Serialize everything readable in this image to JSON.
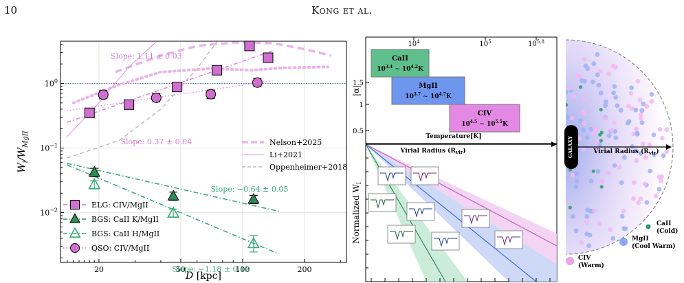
{
  "header": {
    "page_number": "10",
    "running_head": "Kong et al."
  },
  "chart_data": [
    {
      "type": "scatter",
      "xlabel": "D [kpc]",
      "ylabel": "W_i/W_MgII",
      "xscale": "log",
      "yscale": "log",
      "xlim": [
        13,
        320
      ],
      "ylim": [
        0.0017,
        4.5
      ],
      "xticks": [
        {
          "v": 20,
          "t": "20"
        },
        {
          "v": 50,
          "t": "50"
        },
        {
          "v": 100,
          "t": "100"
        },
        {
          "v": 200,
          "t": "200"
        }
      ],
      "yticks": [
        {
          "v": 0.01,
          "t": "10",
          "e": "−2"
        },
        {
          "v": 0.1,
          "t": "10",
          "e": "−1"
        },
        {
          "v": 1,
          "t": "10",
          "e": "0"
        }
      ],
      "grid": true,
      "reference_line_y": 1,
      "series": [
        {
          "name": "ELG: CIV/MgII",
          "marker": "square",
          "color": "#d06fd0",
          "points": [
            [
              18,
              0.35
            ],
            [
              28,
              0.47
            ],
            [
              48,
              0.88
            ],
            [
              75,
              1.6
            ],
            [
              108,
              3.8
            ],
            [
              133,
              2.5
            ]
          ]
        },
        {
          "name": "BGS: CaII K/MgII",
          "marker": "triangle-filled",
          "color": "#2e8b57",
          "points": [
            [
              19,
              0.042
            ],
            [
              46,
              0.018
            ],
            [
              113,
              0.016
            ]
          ]
        },
        {
          "name": "BGS: CaII H/MgII",
          "marker": "triangle-open",
          "color": "#3aaa7a",
          "points": [
            [
              19,
              0.027
            ],
            [
              46,
              0.0098
            ],
            [
              113,
              0.0033
            ]
          ]
        },
        {
          "name": "QSO: CIV/MgII",
          "marker": "circle",
          "color": "#d06fd0",
          "points": [
            [
              21,
              0.67
            ],
            [
              38,
              0.6
            ],
            [
              70,
              0.68
            ],
            [
              118,
              1.03
            ]
          ]
        }
      ],
      "fits": [
        {
          "slope_label": "Slope: 1.11 ± 0.03",
          "color": "#d98ad9",
          "points": [
            [
              14,
              0.25
            ],
            [
              140,
              3.2
            ]
          ]
        },
        {
          "slope_label": "Slope: 0.37 ± 0.04",
          "color": "#d98ad9",
          "points": [
            [
              14,
              0.38
            ],
            [
              140,
              1.1
            ]
          ]
        },
        {
          "slope_label": "Slope: −0.64 ± 0.05",
          "color": "#3aaa7a",
          "points": [
            [
              14,
              0.058
            ],
            [
              150,
              0.0105
            ]
          ]
        },
        {
          "slope_label": "Slope: −1.18 ± 0.12",
          "color": "#3aaa7a",
          "points": [
            [
              14,
              0.055
            ],
            [
              150,
              0.0023
            ]
          ]
        }
      ],
      "reference_curves": [
        {
          "name": "Nelson+2025",
          "style": "dashed-thick",
          "color": "#eab4ea",
          "points": [
            [
              24,
              1.5
            ],
            [
              40,
              2.7
            ],
            [
              60,
              3.8
            ],
            [
              90,
              4.3
            ],
            [
              140,
              4.2
            ],
            [
              200,
              3.4
            ],
            [
              270,
              2.7
            ]
          ]
        },
        {
          "name": "Li+2021",
          "style": "solid-thin",
          "color": "#e3a3e3",
          "points": [
            [
              14,
              0.15
            ],
            [
              20,
              0.5
            ],
            [
              28,
              1.8
            ],
            [
              38,
              4.4
            ]
          ]
        },
        {
          "name": "Oppenheimer+2018",
          "style": "dashed-thin",
          "color": "#bbbbbb",
          "points": [
            [
              14,
              0.07
            ],
            [
              25,
              0.13
            ],
            [
              40,
              0.4
            ],
            [
              60,
              1.7
            ],
            [
              75,
              4.4
            ]
          ]
        }
      ],
      "extra_dotted_curve": {
        "color": "#eab4ea",
        "points": [
          [
            15,
            0.5
          ],
          [
            25,
            0.95
          ],
          [
            40,
            1.5
          ],
          [
            70,
            1.7
          ],
          [
            110,
            1.6
          ],
          [
            160,
            1.75
          ],
          [
            260,
            1.8
          ]
        ]
      }
    }
  ],
  "diagram": {
    "top_panel": {
      "ylabel": "|α|",
      "xlabel": "Temperature[K]",
      "top_ticks": [
        {
          "t": "10",
          "e": "4"
        },
        {
          "t": "10",
          "e": "5"
        },
        {
          "t": "10",
          "e": "5.8"
        }
      ],
      "y_ticks": [
        "1.5",
        "1",
        "0.5"
      ],
      "boxes": [
        {
          "name": "CaII",
          "range_base": "10",
          "range_lo": "3.4",
          "range_hi": "4.2",
          "suffix": "K",
          "color": "#5fbf8c"
        },
        {
          "name": "MgII",
          "range_base": "10",
          "range_lo": "3.7",
          "range_hi": "4.7",
          "suffix": "K",
          "color": "#6f96ee"
        },
        {
          "name": "CIV",
          "range_base": "10",
          "range_lo": "4.5",
          "range_hi": "5.5",
          "suffix": "K",
          "color": "#e389e3"
        }
      ]
    },
    "bottom_panel": {
      "xlabel": "Virial Radius (R",
      "xlabel_sub": "vir",
      "ylabel": "Normalized W",
      "ylabel_sub": "i"
    }
  },
  "halo": {
    "center_label": "GALAXY",
    "axis_label": "Virial Radius (R",
    "axis_label_sub": "vir",
    "legend": [
      {
        "name": "CaII",
        "note": "(Cold)",
        "color": "#2e9a6a"
      },
      {
        "name": "MgII",
        "note": "(Cool Warm)",
        "color": "#8fa7f0"
      },
      {
        "name": "CIV",
        "note": "(Warm)",
        "color": "#eba6eb"
      }
    ]
  }
}
